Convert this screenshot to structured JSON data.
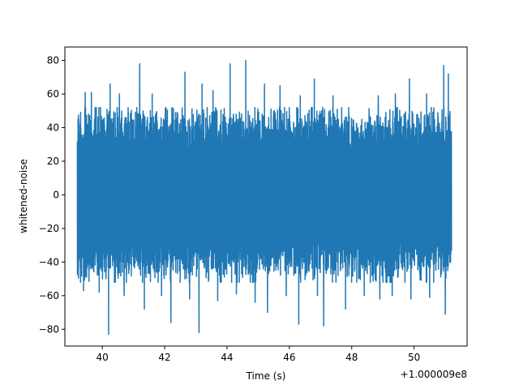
{
  "chart_data": {
    "type": "line",
    "title": "",
    "xlabel": "Time (s)",
    "ylabel": "whitened-noise",
    "x_offset_label": "+1.000009e8",
    "xlim": [
      38.8,
      51.7
    ],
    "ylim": [
      -90,
      88
    ],
    "x_range": [
      39.2,
      51.2
    ],
    "xticks": [
      40,
      42,
      44,
      46,
      48,
      50
    ],
    "xtick_labels": [
      "40",
      "42",
      "44",
      "46",
      "48",
      "50"
    ],
    "yticks": [
      -80,
      -60,
      -40,
      -20,
      0,
      20,
      40,
      60,
      80
    ],
    "ytick_labels": [
      "−80",
      "−60",
      "−40",
      "−20",
      "0",
      "20",
      "40",
      "60",
      "80"
    ],
    "grid": false,
    "line_color": "#1f77b4",
    "series": [
      {
        "values_note_envelope_max": 45,
        "values_note_envelope_min": -45,
        "peaks": [
          [
            39.45,
            61
          ],
          [
            39.65,
            61
          ],
          [
            40.25,
            66
          ],
          [
            40.55,
            60
          ],
          [
            41.2,
            78
          ],
          [
            41.6,
            60
          ],
          [
            42.2,
            68
          ],
          [
            42.65,
            73
          ],
          [
            43.2,
            66
          ],
          [
            43.55,
            62
          ],
          [
            44.1,
            78
          ],
          [
            44.6,
            80
          ],
          [
            45.2,
            66
          ],
          [
            45.7,
            65
          ],
          [
            46.35,
            59
          ],
          [
            46.8,
            69
          ],
          [
            47.4,
            59
          ],
          [
            47.8,
            72
          ],
          [
            48.4,
            61
          ],
          [
            48.85,
            59
          ],
          [
            49.4,
            60
          ],
          [
            49.85,
            69
          ],
          [
            50.4,
            60
          ],
          [
            50.95,
            77
          ],
          [
            51.1,
            72
          ]
        ],
        "troughs": [
          [
            39.4,
            -57
          ],
          [
            39.9,
            -58
          ],
          [
            40.2,
            -83
          ],
          [
            40.7,
            -60
          ],
          [
            41.35,
            -68
          ],
          [
            41.9,
            -60
          ],
          [
            42.2,
            -76
          ],
          [
            42.8,
            -62
          ],
          [
            43.1,
            -82
          ],
          [
            43.7,
            -63
          ],
          [
            44.3,
            -59
          ],
          [
            44.9,
            -64
          ],
          [
            45.3,
            -70
          ],
          [
            45.9,
            -60
          ],
          [
            46.3,
            -77
          ],
          [
            46.9,
            -60
          ],
          [
            47.1,
            -78
          ],
          [
            47.8,
            -68
          ],
          [
            48.4,
            -60
          ],
          [
            48.9,
            -62
          ],
          [
            49.3,
            -60
          ],
          [
            49.9,
            -62
          ],
          [
            50.5,
            -61
          ],
          [
            51.0,
            -71
          ]
        ]
      }
    ]
  }
}
